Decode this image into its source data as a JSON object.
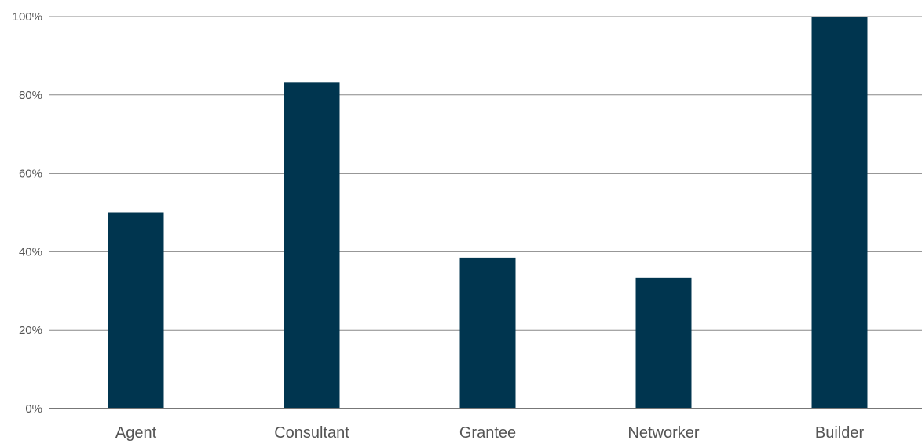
{
  "chart_data": {
    "type": "bar",
    "title": "",
    "xlabel": "",
    "ylabel": "",
    "categories": [
      "Agent",
      "Consultant",
      "Grantee",
      "Networker",
      "Builder"
    ],
    "values": [
      50,
      83.3,
      38.5,
      33.3,
      100
    ],
    "ylim": [
      0,
      100
    ],
    "yticks": [
      0,
      20,
      40,
      60,
      80,
      100
    ],
    "ytick_labels": [
      "0%",
      "20%",
      "40%",
      "60%",
      "80%",
      "100%"
    ],
    "grid": true,
    "legend": "none",
    "bar_color": "#00354f"
  }
}
